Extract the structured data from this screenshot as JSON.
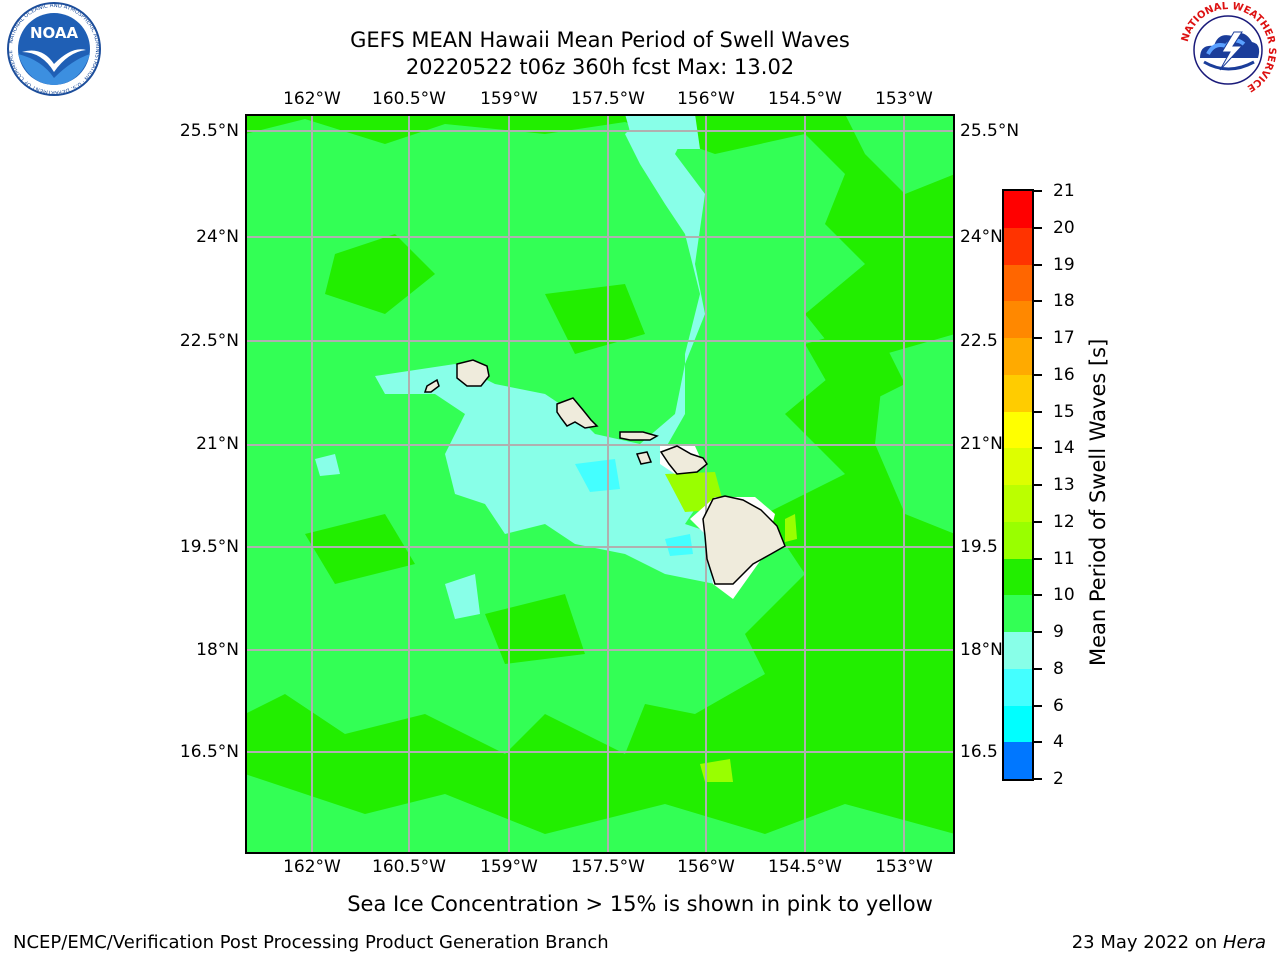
{
  "title": {
    "line1": "GEFS MEAN Hawaii Mean Period of Swell Waves",
    "line2": "20220522 t06z 360h fcst   Max: 13.02"
  },
  "map": {
    "lon_labels": [
      "162°W",
      "160.5°W",
      "159°W",
      "157.5°W",
      "156°W",
      "154.5°W",
      "153°W"
    ],
    "lat_labels": [
      "25.5°N",
      "24°N",
      "22.5°N",
      "21°N",
      "19.5°N",
      "18°N",
      "16.5°N"
    ],
    "lat_labels_right": [
      "25.5°N",
      "24°N",
      "22.5",
      "21°N",
      "19.5",
      "18°N",
      "16.5"
    ],
    "ocean_colors": {
      "period_10_11": "#33ff55",
      "period_11_12": "#22ee00",
      "period_9_10": "#88ffe8",
      "period_8_9": "#44ffff",
      "period_12_13": "#99ff00",
      "land": "#efebdc",
      "grid": "#b0b0b0"
    },
    "islands": [
      "Niihau",
      "Kauai",
      "Oahu",
      "Molokai",
      "Lanai",
      "Maui",
      "Kahoolawe",
      "Hawaii"
    ]
  },
  "colorbar": {
    "title": "Mean Period of Swell Waves [s]",
    "labels": [
      "21",
      "20",
      "19",
      "18",
      "17",
      "16",
      "15",
      "14",
      "13",
      "12",
      "11",
      "10",
      "9",
      "8",
      "6",
      "4",
      "2"
    ],
    "colors": [
      "#ff0000",
      "#ff3300",
      "#ff6600",
      "#ff8800",
      "#ffaa00",
      "#ffcc00",
      "#ffff00",
      "#ddff00",
      "#bbff00",
      "#99ff00",
      "#22ee00",
      "#33ff55",
      "#88ffe8",
      "#44ffff",
      "#00ffff",
      "#0077ff",
      "#0000ff"
    ]
  },
  "note": "Sea Ice Concentration > 15% is shown in pink to yellow",
  "footer": {
    "left": "NCEP/EMC/Verification Post Processing Product Generation Branch",
    "right_prefix": "23 May 2022 on ",
    "right_host": "Hera"
  },
  "logos": {
    "noaa_text": "NOAA",
    "noaa_ring": "NATIONAL OCEANIC AND ATMOSPHERIC ADMINISTRATION · U.S. DEPARTMENT OF COMMERCE",
    "nws_ring": "NATIONAL WEATHER SERVICE"
  }
}
